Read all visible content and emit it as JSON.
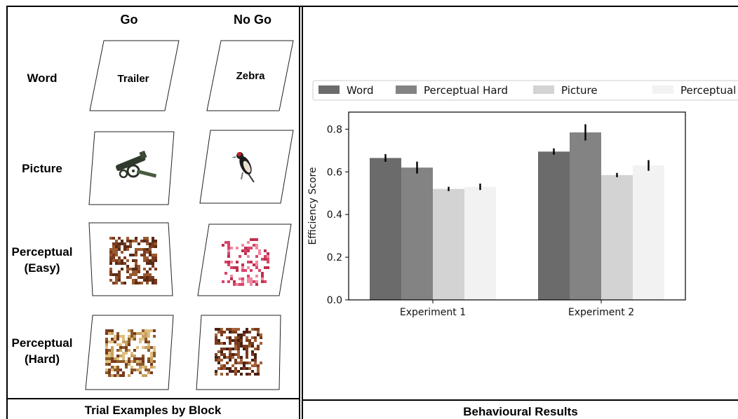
{
  "left_panel": {
    "columns": [
      "Go",
      "No Go"
    ],
    "rows": [
      {
        "label_lines": [
          "Word"
        ],
        "go_word": "Trailer",
        "nogo_word": "Zebra",
        "go_image": "",
        "nogo_image": ""
      },
      {
        "label_lines": [
          "Picture"
        ],
        "go_word": "",
        "nogo_word": "",
        "go_image": "cannon-icon",
        "nogo_image": "woodpecker-icon"
      },
      {
        "label_lines": [
          "Perceptual",
          "(Easy)"
        ],
        "go_word": "",
        "nogo_word": "",
        "go_image": "noise-patch-brown",
        "nogo_image": "noise-patch-pink"
      },
      {
        "label_lines": [
          "Perceptual",
          "(Hard)"
        ],
        "go_word": "",
        "nogo_word": "",
        "go_image": "noise-patch-tan",
        "nogo_image": "noise-patch-brown"
      }
    ],
    "title": "Trial Examples by Block"
  },
  "right_panel": {
    "title": "Behavioural Results"
  },
  "colors": {
    "word": "#6b6b6b",
    "perceptual_hard": "#838383",
    "picture": "#d3d3d3",
    "perceptual_easy": "#f2f2f2",
    "error_bar": "#000000",
    "noise_brown": "#7a3b1e",
    "noise_pink": "#d8456a",
    "noise_tan": "#c9a060"
  },
  "chart_data": {
    "type": "bar",
    "categories": [
      "Experiment 1",
      "Experiment 2"
    ],
    "series": [
      {
        "name": "Word",
        "values": [
          0.665,
          0.695
        ],
        "errors": [
          0.018,
          0.015
        ]
      },
      {
        "name": "Perceptual Hard",
        "values": [
          0.62,
          0.785
        ],
        "errors": [
          0.028,
          0.038
        ]
      },
      {
        "name": "Picture",
        "values": [
          0.52,
          0.585
        ],
        "errors": [
          0.01,
          0.01
        ]
      },
      {
        "name": "Perceptual Easy",
        "values": [
          0.53,
          0.63
        ],
        "errors": [
          0.015,
          0.025
        ]
      }
    ],
    "title": "",
    "xlabel": "",
    "ylabel": "Efficiency Score",
    "ylim": [
      0,
      0.88
    ],
    "yticks": [
      "0.0",
      "0.2",
      "0.4",
      "0.6",
      "0.8"
    ],
    "ytick_values": [
      0,
      0.2,
      0.4,
      0.6,
      0.8
    ],
    "grid": false,
    "legend_position": "top"
  }
}
